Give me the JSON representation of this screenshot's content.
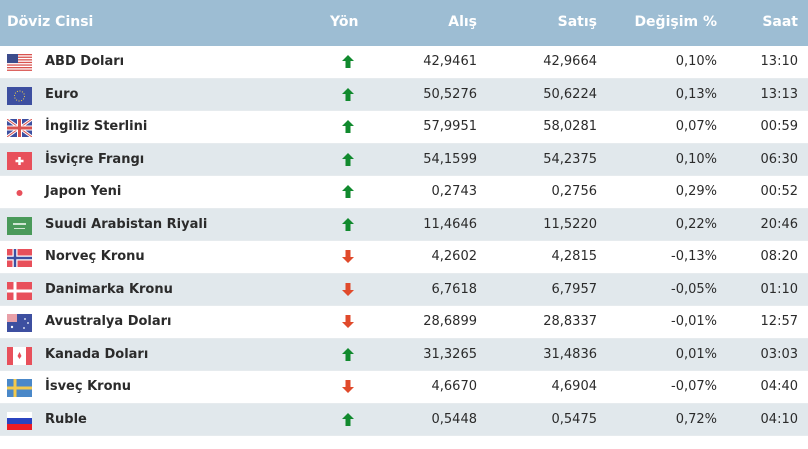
{
  "header": {
    "name": "Döviz Cinsi",
    "direction": "Yön",
    "buy": "Alış",
    "sell": "Satış",
    "change": "Değişim %",
    "time": "Saat"
  },
  "colors": {
    "header_bg": "#9dbdd3",
    "row_alt": "#e1e8ec",
    "up": "#118a2e",
    "down": "#e04a2b"
  },
  "rows": [
    {
      "flag": "us-flag-icon",
      "name": "ABD Doları",
      "dir": "up",
      "buy": "42,9461",
      "sell": "42,9664",
      "change": "0,10%",
      "time": "13:10"
    },
    {
      "flag": "eu-flag-icon",
      "name": "Euro",
      "dir": "up",
      "buy": "50,5276",
      "sell": "50,6224",
      "change": "0,13%",
      "time": "13:13"
    },
    {
      "flag": "gb-flag-icon",
      "name": "İngiliz Sterlini",
      "dir": "up",
      "buy": "57,9951",
      "sell": "58,0281",
      "change": "0,07%",
      "time": "00:59"
    },
    {
      "flag": "ch-flag-icon",
      "name": "İsviçre Frangı",
      "dir": "up",
      "buy": "54,1599",
      "sell": "54,2375",
      "change": "0,10%",
      "time": "06:30"
    },
    {
      "flag": "jp-flag-icon",
      "name": "Japon Yeni",
      "dir": "up",
      "buy": "0,2743",
      "sell": "0,2756",
      "change": "0,29%",
      "time": "00:52"
    },
    {
      "flag": "sa-flag-icon",
      "name": "Suudi Arabistan Riyali",
      "dir": "up",
      "buy": "11,4646",
      "sell": "11,5220",
      "change": "0,22%",
      "time": "20:46"
    },
    {
      "flag": "no-flag-icon",
      "name": "Norveç Kronu",
      "dir": "down",
      "buy": "4,2602",
      "sell": "4,2815",
      "change": "-0,13%",
      "time": "08:20"
    },
    {
      "flag": "dk-flag-icon",
      "name": "Danimarka Kronu",
      "dir": "down",
      "buy": "6,7618",
      "sell": "6,7957",
      "change": "-0,05%",
      "time": "01:10"
    },
    {
      "flag": "au-flag-icon",
      "name": "Avustralya Doları",
      "dir": "down",
      "buy": "28,6899",
      "sell": "28,8337",
      "change": "-0,01%",
      "time": "12:57"
    },
    {
      "flag": "ca-flag-icon",
      "name": "Kanada Doları",
      "dir": "up",
      "buy": "31,3265",
      "sell": "31,4836",
      "change": "0,01%",
      "time": "03:03"
    },
    {
      "flag": "se-flag-icon",
      "name": "İsveç Kronu",
      "dir": "down",
      "buy": "4,6670",
      "sell": "4,6904",
      "change": "-0,07%",
      "time": "04:40"
    },
    {
      "flag": "ru-flag-icon",
      "name": "Ruble",
      "dir": "up",
      "buy": "0,5448",
      "sell": "0,5475",
      "change": "0,72%",
      "time": "04:10"
    }
  ]
}
